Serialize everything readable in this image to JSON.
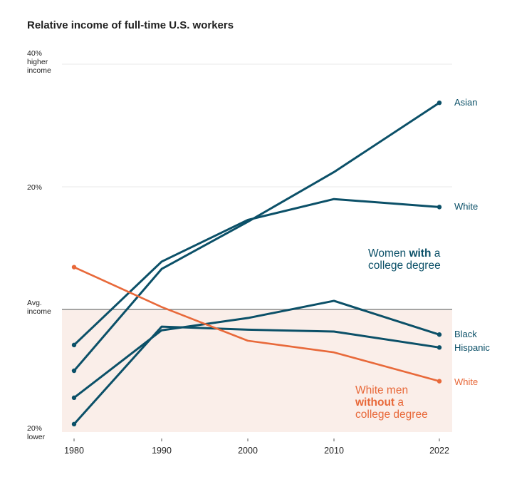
{
  "chart_data": {
    "type": "line",
    "title": "Relative income of full-time U.S. workers",
    "xlabel": "",
    "ylabel": "",
    "x": [
      1980,
      1990,
      2000,
      2010,
      2022
    ],
    "x_tick_labels": [
      "1980",
      "1990",
      "2000",
      "2010",
      "2022"
    ],
    "ylim": [
      -20,
      40
    ],
    "y_ticks": [
      {
        "value": 40,
        "lines": [
          "40%",
          "higher",
          "income"
        ]
      },
      {
        "value": 20,
        "lines": [
          "20%"
        ]
      },
      {
        "value": 0,
        "lines": [
          "Avg.",
          "income"
        ]
      },
      {
        "value": -20,
        "lines": [
          "20%",
          "lower"
        ]
      }
    ],
    "gridlines": [
      40,
      20
    ],
    "reference_line": {
      "value": 0,
      "label": "Avg. income"
    },
    "shaded_below_zero": true,
    "series": [
      {
        "name": "Asian",
        "group": "women_with_degree",
        "label": "Asian",
        "values": [
          -10.0,
          6.6,
          14.3,
          22.4,
          33.7
        ]
      },
      {
        "name": "White",
        "group": "women_with_degree",
        "label": "White",
        "values": [
          -5.8,
          7.8,
          14.6,
          18.0,
          16.7
        ]
      },
      {
        "name": "Black",
        "group": "women_with_degree",
        "label": "Black",
        "values": [
          -14.4,
          -3.4,
          -1.4,
          1.4,
          -4.1
        ]
      },
      {
        "name": "Hispanic",
        "group": "women_with_degree",
        "label": "Hispanic",
        "values": [
          -18.7,
          -2.8,
          -3.3,
          -3.6,
          -6.2
        ]
      },
      {
        "name": "White men without degree",
        "group": "men_without_degree",
        "label": "White",
        "values": [
          6.9,
          0.4,
          -5.1,
          -7.0,
          -11.7
        ]
      }
    ],
    "colors": {
      "women_with_degree": "#0b5068",
      "men_without_degree": "#e8693a",
      "shade": "#faeee9",
      "reference": "#888888",
      "grid": "#e8e8e8"
    },
    "annotations": [
      {
        "id": "women",
        "group": "women_with_degree",
        "lines": [
          [
            {
              "text": "Women ",
              "bold": false
            },
            {
              "text": "with",
              "bold": true
            },
            {
              "text": " a",
              "bold": false
            }
          ],
          [
            {
              "text": "college degree",
              "bold": false
            }
          ]
        ]
      },
      {
        "id": "men",
        "group": "men_without_degree",
        "lines": [
          [
            {
              "text": "White men",
              "bold": false
            }
          ],
          [
            {
              "text": "without",
              "bold": true
            },
            {
              "text": " a",
              "bold": false
            }
          ],
          [
            {
              "text": "college degree",
              "bold": false
            }
          ]
        ]
      }
    ]
  }
}
